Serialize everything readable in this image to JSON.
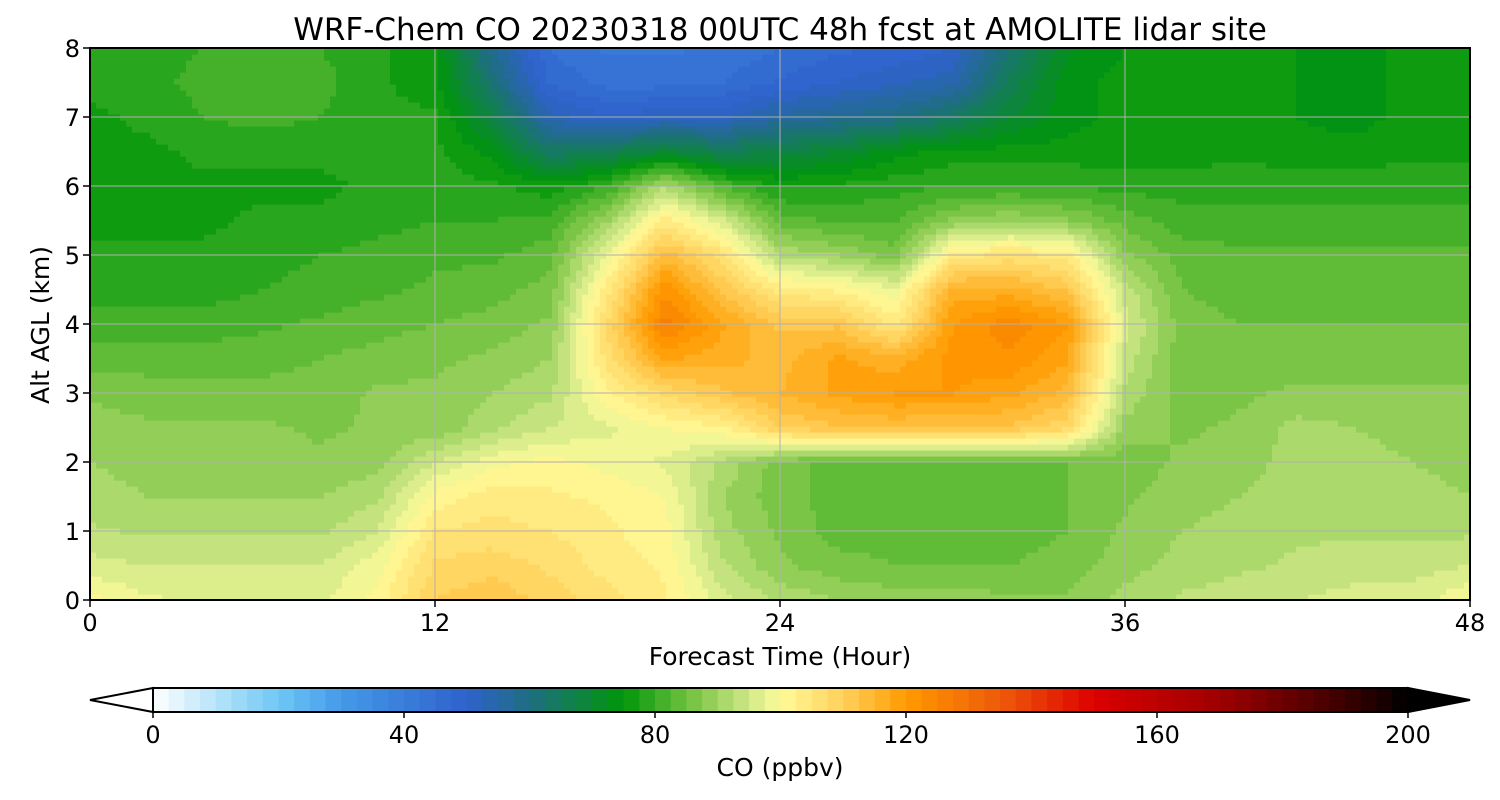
{
  "chart_data": {
    "type": "heatmap",
    "title": "WRF-Chem CO  20230318 00UTC 48h fcst at AMOLITE lidar site",
    "xlabel": "Forecast Time (Hour)",
    "ylabel": "Alt AGL (km)",
    "xlim": [
      0,
      48
    ],
    "ylim": [
      0,
      8
    ],
    "x_ticks": [
      "0",
      "12",
      "24",
      "36",
      "48"
    ],
    "y_ticks": [
      "0",
      "1",
      "2",
      "3",
      "4",
      "5",
      "6",
      "7",
      "8"
    ],
    "grid": true,
    "x": [
      0,
      2,
      4,
      6,
      8,
      10,
      12,
      14,
      16,
      18,
      20,
      22,
      24,
      26,
      28,
      30,
      32,
      34,
      36,
      38,
      40,
      42,
      44,
      46,
      48
    ],
    "y": [
      0,
      0.5,
      1,
      1.5,
      2,
      2.5,
      3,
      3.5,
      4,
      4.5,
      5,
      5.5,
      6,
      6.5,
      7,
      7.5,
      8
    ],
    "z_units": "ppbv",
    "z_rows": [
      [
        101,
        98,
        97,
        97,
        97,
        101,
        110,
        112,
        109,
        106,
        103,
        96,
        92,
        90,
        89,
        89,
        88,
        88,
        91,
        93,
        94,
        95,
        96,
        96,
        100
      ],
      [
        96,
        95,
        95,
        95,
        95,
        99,
        108,
        109,
        107,
        104,
        102,
        93,
        88,
        86,
        85,
        85,
        85,
        86,
        89,
        91,
        92,
        93,
        94,
        94,
        95
      ],
      [
        93,
        92,
        92,
        92,
        92,
        95,
        105,
        106,
        105,
        103,
        101,
        91,
        87,
        84,
        84,
        84,
        84,
        85,
        88,
        90,
        91,
        92,
        92,
        92,
        92
      ],
      [
        91,
        90,
        90,
        90,
        90,
        92,
        101,
        104,
        103,
        102,
        100,
        90,
        86,
        84,
        84,
        84,
        84,
        85,
        87,
        89,
        90,
        91,
        91,
        91,
        90
      ],
      [
        90,
        89,
        89,
        89,
        88,
        89,
        95,
        99,
        101,
        99,
        97,
        92,
        86,
        84,
        84,
        84,
        84,
        85,
        86,
        88,
        89,
        91,
        91,
        90,
        89
      ],
      [
        89,
        88,
        88,
        88,
        87,
        88,
        88,
        92,
        95,
        97,
        100,
        102,
        110,
        112,
        113,
        112,
        112,
        108,
        89,
        87,
        88,
        91,
        90,
        89,
        89
      ],
      [
        87,
        86,
        86,
        86,
        86,
        88,
        88,
        90,
        92,
        102,
        108,
        112,
        115,
        118,
        120,
        120,
        118,
        114,
        92,
        86,
        87,
        88,
        88,
        88,
        88
      ],
      [
        84,
        84,
        84,
        84,
        85,
        86,
        87,
        88,
        90,
        106,
        118,
        116,
        114,
        118,
        116,
        121,
        122,
        118,
        94,
        86,
        86,
        86,
        86,
        86,
        86
      ],
      [
        81,
        81,
        81,
        82,
        83,
        84,
        85,
        86,
        88,
        108,
        126,
        118,
        112,
        112,
        104,
        120,
        124,
        120,
        96,
        86,
        85,
        85,
        85,
        85,
        85
      ],
      [
        79,
        79,
        79,
        80,
        81,
        82,
        83,
        84,
        86,
        104,
        122,
        112,
        104,
        102,
        98,
        116,
        116,
        112,
        94,
        85,
        84,
        84,
        84,
        84,
        84
      ],
      [
        78,
        78,
        78,
        79,
        80,
        81,
        82,
        82,
        84,
        98,
        114,
        106,
        92,
        90,
        86,
        104,
        106,
        104,
        88,
        84,
        83,
        83,
        83,
        83,
        83
      ],
      [
        77,
        77,
        77,
        78,
        78,
        79,
        80,
        80,
        81,
        90,
        104,
        96,
        84,
        82,
        82,
        88,
        90,
        88,
        84,
        81,
        81,
        81,
        81,
        81,
        81
      ],
      [
        77,
        77,
        77,
        77,
        77,
        78,
        79,
        78,
        76,
        80,
        92,
        82,
        77,
        78,
        79,
        80,
        80,
        80,
        79,
        79,
        79,
        79,
        79,
        79,
        79
      ],
      [
        77,
        77,
        78,
        78,
        78,
        78,
        78,
        74,
        64,
        66,
        70,
        66,
        68,
        70,
        74,
        76,
        76,
        76,
        76,
        76,
        77,
        76,
        76,
        77,
        77
      ],
      [
        77,
        78,
        80,
        81,
        80,
        78,
        78,
        68,
        54,
        50,
        52,
        52,
        56,
        58,
        60,
        64,
        70,
        74,
        76,
        76,
        76,
        75,
        74,
        76,
        77
      ],
      [
        78,
        79,
        81,
        82,
        81,
        78,
        76,
        62,
        47,
        44,
        44,
        45,
        48,
        50,
        52,
        54,
        66,
        74,
        76,
        76,
        76,
        75,
        74,
        76,
        77
      ],
      [
        78,
        79,
        80,
        81,
        80,
        78,
        76,
        58,
        45,
        42,
        42,
        43,
        45,
        47,
        48,
        50,
        62,
        72,
        75,
        76,
        76,
        75,
        74,
        76,
        77
      ]
    ],
    "colorbar": {
      "label": "CO  (ppbv)",
      "ticks": [
        "0",
        "40",
        "80",
        "120",
        "160",
        "200"
      ],
      "min": 0,
      "max": 200,
      "step": 2.5,
      "extend": "both",
      "stops": [
        {
          "v": 0,
          "c": "#ffffff"
        },
        {
          "v": 20,
          "c": "#6ec8f4"
        },
        {
          "v": 30,
          "c": "#4499e8"
        },
        {
          "v": 50,
          "c": "#2f61cc"
        },
        {
          "v": 60,
          "c": "#1f6e82"
        },
        {
          "v": 75,
          "c": "#00960a"
        },
        {
          "v": 85,
          "c": "#6ec03c"
        },
        {
          "v": 95,
          "c": "#d0e887"
        },
        {
          "v": 100,
          "c": "#fffa99"
        },
        {
          "v": 110,
          "c": "#ffd15a"
        },
        {
          "v": 120,
          "c": "#ff9a00"
        },
        {
          "v": 135,
          "c": "#ee5a0a"
        },
        {
          "v": 150,
          "c": "#dc0000"
        },
        {
          "v": 170,
          "c": "#9e0000"
        },
        {
          "v": 190,
          "c": "#3a0000"
        },
        {
          "v": 200,
          "c": "#000000"
        }
      ]
    }
  }
}
